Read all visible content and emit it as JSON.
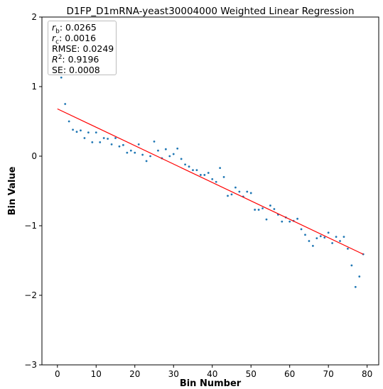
{
  "chart_data": {
    "type": "scatter",
    "title": "D1FP_D1mRNA-yeast30004000 Weighted Linear Regression",
    "xlabel": "Bin Number",
    "ylabel": "Bin Value",
    "xlim": [
      -4,
      83
    ],
    "ylim": [
      -3,
      2
    ],
    "xticks": [
      "0",
      "10",
      "20",
      "30",
      "40",
      "50",
      "60",
      "70",
      "80"
    ],
    "yticks": [
      "−3",
      "−2",
      "−1",
      "0",
      "1",
      "2"
    ],
    "grid": false,
    "series": [
      {
        "kind": "scatter",
        "color": "#1f77b4",
        "x": [
          1,
          2,
          3,
          4,
          5,
          6,
          7,
          8,
          9,
          10,
          11,
          12,
          13,
          14,
          15,
          16,
          17,
          18,
          19,
          20,
          21,
          22,
          23,
          24,
          25,
          26,
          27,
          28,
          29,
          30,
          31,
          32,
          33,
          34,
          35,
          36,
          37,
          38,
          39,
          40,
          41,
          42,
          43,
          44,
          45,
          46,
          47,
          48,
          49,
          50,
          51,
          52,
          53,
          54,
          55,
          56,
          57,
          58,
          59,
          60,
          61,
          62,
          63,
          64,
          65,
          66,
          67,
          68,
          69,
          70,
          71,
          72,
          73,
          74,
          75,
          76,
          77,
          78,
          79
        ],
        "y": [
          1.13,
          0.75,
          0.5,
          0.38,
          0.35,
          0.37,
          0.26,
          0.34,
          0.2,
          0.34,
          0.2,
          0.26,
          0.25,
          0.17,
          0.26,
          0.14,
          0.16,
          0.05,
          0.08,
          0.05,
          0.17,
          0.02,
          -0.07,
          0.0,
          0.21,
          0.08,
          -0.03,
          0.1,
          0.0,
          0.03,
          0.11,
          -0.04,
          -0.12,
          -0.15,
          -0.2,
          -0.2,
          -0.27,
          -0.27,
          -0.24,
          -0.33,
          -0.37,
          -0.17,
          -0.3,
          -0.57,
          -0.55,
          -0.45,
          -0.51,
          -0.58,
          -0.51,
          -0.53,
          -0.77,
          -0.77,
          -0.75,
          -0.91,
          -0.71,
          -0.76,
          -0.84,
          -0.94,
          -0.88,
          -0.94,
          -0.93,
          -0.9,
          -1.05,
          -1.13,
          -1.22,
          -1.29,
          -1.18,
          -1.15,
          -1.17,
          -1.1,
          -1.25,
          -1.16,
          -1.22,
          -1.16,
          -1.33,
          -1.57,
          -1.88,
          -1.73,
          -1.41
        ]
      },
      {
        "kind": "line",
        "color": "#ff0000",
        "x": [
          0,
          79
        ],
        "y": [
          0.68,
          -1.41
        ]
      }
    ]
  },
  "stats": {
    "rb_value": ": 0.0265",
    "rc_value": ": 0.0016",
    "rmse": "RMSE: 0.0249",
    "r2_value": ": 0.9196",
    "se": "SE: 0.0008"
  }
}
